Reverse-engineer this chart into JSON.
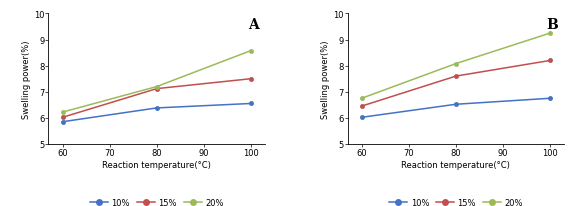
{
  "panel_A": {
    "label": "A",
    "x": [
      60,
      80,
      100
    ],
    "series": [
      {
        "name": "10%",
        "values": [
          5.85,
          6.38,
          6.55
        ],
        "color": "#4472C4",
        "marker": "o"
      },
      {
        "name": "15%",
        "values": [
          6.02,
          7.12,
          7.5
        ],
        "color": "#C0504D",
        "marker": "o"
      },
      {
        "name": "20%",
        "values": [
          6.22,
          7.2,
          8.58
        ],
        "color": "#9BBB59",
        "marker": "o"
      }
    ]
  },
  "panel_B": {
    "label": "B",
    "x": [
      60,
      80,
      100
    ],
    "series": [
      {
        "name": "10%",
        "values": [
          6.02,
          6.52,
          6.75
        ],
        "color": "#4472C4",
        "marker": "o"
      },
      {
        "name": "15%",
        "values": [
          6.45,
          7.6,
          8.2
        ],
        "color": "#C0504D",
        "marker": "o"
      },
      {
        "name": "20%",
        "values": [
          6.75,
          8.08,
          9.25
        ],
        "color": "#9BBB59",
        "marker": "o"
      }
    ]
  },
  "xlabel": "Reaction temperature(°C)",
  "ylabel": "Swelling power(%)",
  "xlim": [
    57,
    103
  ],
  "ylim": [
    5,
    10
  ],
  "yticks": [
    5,
    6,
    7,
    8,
    9,
    10
  ],
  "xticks": [
    60,
    70,
    80,
    90,
    100
  ],
  "legend_labels": [
    "10%",
    "15%",
    "20%"
  ],
  "legend_colors": [
    "#4472C4",
    "#C0504D",
    "#9BBB59"
  ],
  "fontsize_label": 6,
  "fontsize_tick": 6,
  "fontsize_legend": 6,
  "fontsize_panel_label": 10
}
